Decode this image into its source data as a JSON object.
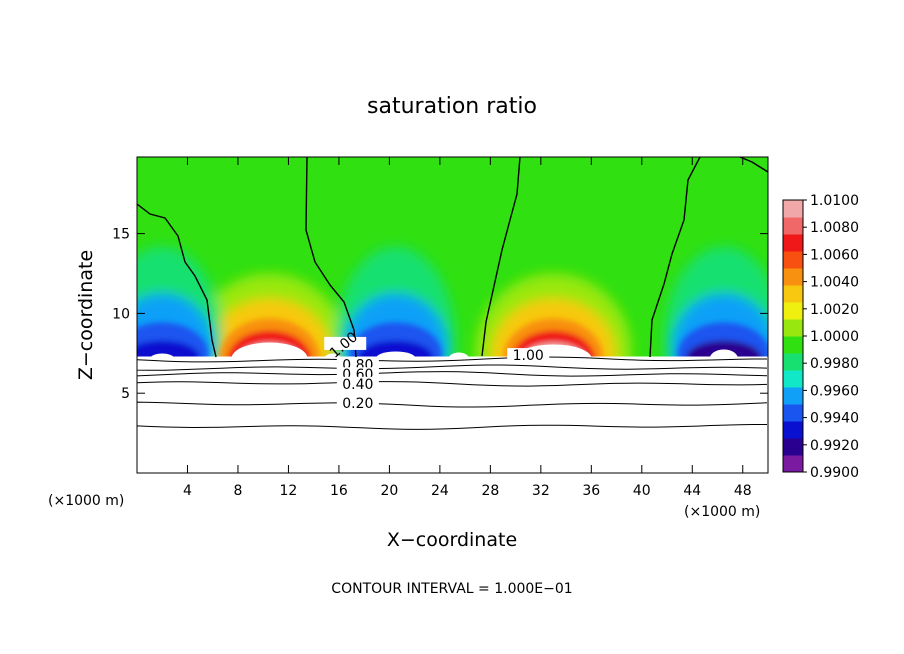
{
  "chart_data": {
    "type": "heatmap",
    "title": "saturation ratio",
    "xlabel": "X−coordinate",
    "ylabel": "Z−coordinate",
    "x_unit_left": "(×1000 m)",
    "x_unit_right": "(×1000 m)",
    "footer": "CONTOUR INTERVAL = 1.000E−01",
    "xlim": [
      0,
      50
    ],
    "ylim": [
      0,
      19.8
    ],
    "x_ticks": [
      "4",
      "8",
      "12",
      "16",
      "20",
      "24",
      "28",
      "32",
      "36",
      "40",
      "44",
      "48"
    ],
    "y_ticks": [
      "5",
      "10",
      "15"
    ],
    "colorbar": {
      "labels": [
        "1.0100",
        "1.0080",
        "1.0060",
        "1.0040",
        "1.0020",
        "1.0000",
        "0.9980",
        "0.9960",
        "0.9940",
        "0.9920",
        "0.9900"
      ],
      "min": 0.99,
      "max": 1.01,
      "colors": [
        "#7a1aa0",
        "#2a0090",
        "#0a10d0",
        "#1a55f0",
        "#10a0f8",
        "#10e8c8",
        "#18e070",
        "#30e010",
        "#98e810",
        "#f0f010",
        "#f8c810",
        "#f89010",
        "#f85010",
        "#f01818",
        "#f06868",
        "#f0a8a8"
      ]
    },
    "contour_labels": [
      "1.00",
      "1.00",
      "0.80",
      "0.60",
      "0.40",
      "0.20"
    ],
    "regions": {
      "z_base": 7.3,
      "plumes": [
        {
          "center_x": 10.5,
          "kind": "supersaturated",
          "peak": 1.0065
        },
        {
          "center_x": 33.0,
          "kind": "supersaturated",
          "peak": 1.0065
        },
        {
          "center_x": 20.5,
          "kind": "subsaturated",
          "peak": 0.9925
        },
        {
          "center_x": 46.5,
          "kind": "subsaturated",
          "peak": 0.992
        },
        {
          "center_x": 2.0,
          "kind": "subsaturated",
          "peak": 0.9935
        }
      ]
    },
    "lower_contours": [
      {
        "z": 7.1,
        "value": "1.00"
      },
      {
        "z": 6.6,
        "value": "0.80"
      },
      {
        "z": 6.2,
        "value": "0.60"
      },
      {
        "z": 5.6,
        "value": "0.40"
      },
      {
        "z": 4.3,
        "value": "0.20"
      },
      {
        "z": 2.9,
        "value": ""
      }
    ]
  }
}
